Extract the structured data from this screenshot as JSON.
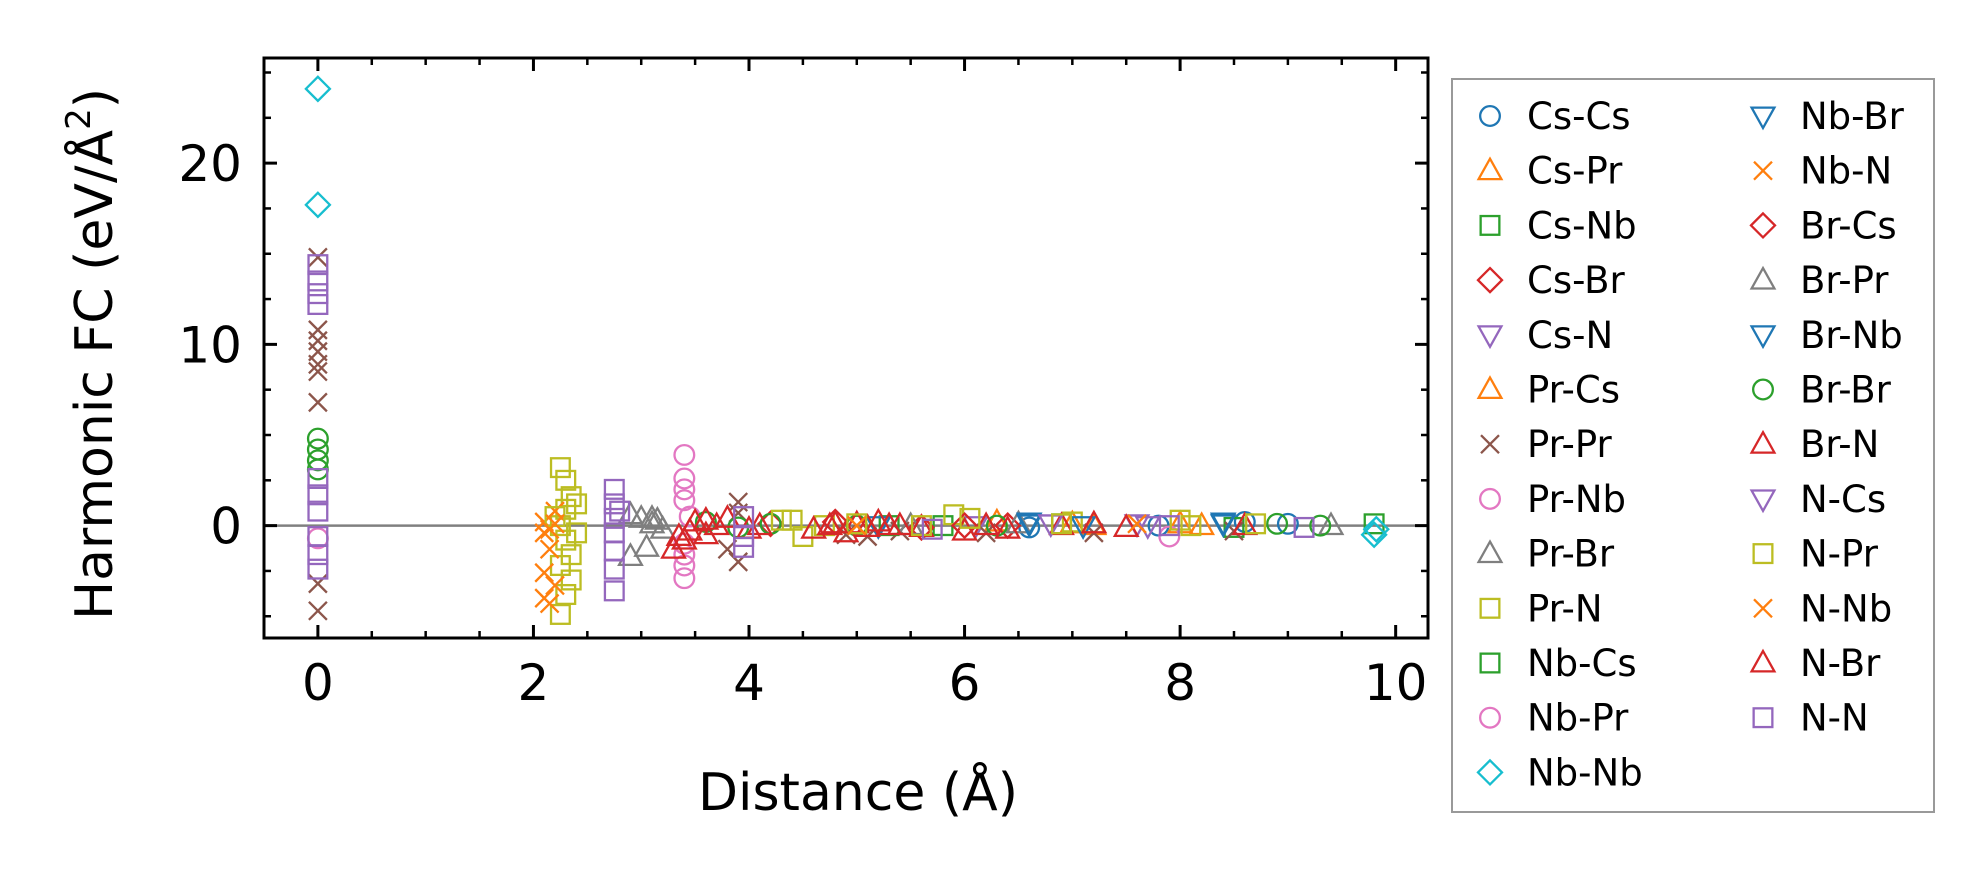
{
  "chart_data": {
    "type": "scatter",
    "title": "",
    "xlabel": "Distance (Å)",
    "ylabel_main": "Harmonic FC (eV/Å",
    "ylabel_sup": "2",
    "ylabel_close": ")",
    "xlim": [
      -0.5,
      10.3
    ],
    "ylim": [
      -6.2,
      25.8
    ],
    "x_ticks": [
      0,
      2,
      4,
      6,
      8,
      10
    ],
    "x_tick_labels": [
      "0",
      "2",
      "4",
      "6",
      "8",
      "10"
    ],
    "y_ticks": [
      0,
      10,
      20
    ],
    "y_tick_labels": [
      "0",
      "10",
      "20"
    ],
    "x_minor_step": 0.5,
    "y_minor_step": 2.5,
    "reference_line_y": 0,
    "legend": {
      "position": "outside-right",
      "columns": 2
    },
    "series": [
      {
        "name": "Cs-Cs",
        "marker": "circle",
        "color": "#1f77b4",
        "points": [
          [
            8.6,
            0.2
          ],
          [
            9.0,
            0.1
          ],
          [
            7.8,
            0.0
          ],
          [
            6.6,
            -0.1
          ]
        ]
      },
      {
        "name": "Cs-Pr",
        "marker": "triangle-up",
        "color": "#ff7f0e",
        "points": [
          [
            7.0,
            0.1
          ],
          [
            8.2,
            0.0
          ],
          [
            6.3,
            0.2
          ]
        ]
      },
      {
        "name": "Cs-Nb",
        "marker": "square",
        "color": "#2ca02c",
        "points": [
          [
            5.8,
            0.0
          ],
          [
            6.9,
            0.1
          ],
          [
            8.5,
            -0.1
          ]
        ]
      },
      {
        "name": "Cs-Br",
        "marker": "diamond",
        "color": "#d62728",
        "points": [
          [
            4.2,
            0.1
          ],
          [
            5.6,
            -0.1
          ],
          [
            6.4,
            0.0
          ]
        ]
      },
      {
        "name": "Cs-N",
        "marker": "triangle-down",
        "color": "#9467bd",
        "points": [
          [
            7.6,
            0.1
          ],
          [
            6.1,
            0.0
          ]
        ]
      },
      {
        "name": "Pr-Cs",
        "marker": "triangle-up",
        "color": "#ff7f0e",
        "points": [
          [
            7.2,
            0.0
          ],
          [
            8.0,
            0.1
          ]
        ]
      },
      {
        "name": "Pr-Pr",
        "marker": "x",
        "color": "#8c564b",
        "points": [
          [
            0,
            14.8
          ],
          [
            0,
            10.8
          ],
          [
            0,
            10.2
          ],
          [
            0,
            9.6
          ],
          [
            0,
            8.9
          ],
          [
            0,
            8.5
          ],
          [
            0,
            6.8
          ],
          [
            0,
            -3.2
          ],
          [
            0,
            -4.7
          ],
          [
            3.9,
            1.3
          ],
          [
            3.9,
            0.7
          ],
          [
            3.9,
            -2.0
          ],
          [
            3.8,
            -1.3
          ],
          [
            4.9,
            -0.5
          ],
          [
            5.1,
            -0.6
          ],
          [
            5.4,
            -0.3
          ],
          [
            6.2,
            -0.4
          ],
          [
            7.2,
            -0.4
          ],
          [
            8.5,
            -0.3
          ]
        ]
      },
      {
        "name": "Pr-Nb",
        "marker": "circle",
        "color": "#e377c2",
        "points": [
          [
            3.4,
            3.9
          ],
          [
            3.4,
            2.6
          ],
          [
            3.4,
            2.0
          ],
          [
            3.4,
            1.4
          ],
          [
            3.4,
            -1.0
          ],
          [
            3.4,
            -1.6
          ],
          [
            3.4,
            -2.2
          ],
          [
            3.4,
            -2.9
          ],
          [
            7.9,
            -0.6
          ]
        ]
      },
      {
        "name": "Pr-Br",
        "marker": "triangle-up",
        "color": "#7f7f7f",
        "points": [
          [
            2.9,
            0.6
          ],
          [
            3.0,
            0.4
          ],
          [
            3.1,
            0.1
          ],
          [
            3.2,
            -0.2
          ],
          [
            2.9,
            -1.7
          ],
          [
            3.05,
            -1.2
          ],
          [
            3.15,
            0.3
          ],
          [
            9.4,
            0.0
          ],
          [
            6.5,
            0.1
          ]
        ]
      },
      {
        "name": "Pr-N",
        "marker": "square",
        "color": "#bcbd22",
        "points": [
          [
            2.25,
            3.2
          ],
          [
            2.3,
            2.5
          ],
          [
            2.35,
            1.6
          ],
          [
            2.3,
            0.9
          ],
          [
            2.25,
            0.0
          ],
          [
            2.3,
            -0.8
          ],
          [
            2.35,
            -1.6
          ],
          [
            2.25,
            -2.2
          ],
          [
            2.35,
            -3.0
          ],
          [
            2.3,
            -3.8
          ],
          [
            2.25,
            -4.9
          ],
          [
            2.4,
            1.2
          ],
          [
            2.4,
            -0.4
          ],
          [
            4.4,
            0.3
          ],
          [
            4.5,
            -0.6
          ],
          [
            4.7,
            0.0
          ],
          [
            5.9,
            0.6
          ],
          [
            7.0,
            0.2
          ],
          [
            8.0,
            0.3
          ]
        ]
      },
      {
        "name": "Nb-Cs",
        "marker": "square",
        "color": "#2ca02c",
        "points": [
          [
            9.8,
            0.1
          ],
          [
            5.3,
            0.0
          ]
        ]
      },
      {
        "name": "Nb-Pr",
        "marker": "circle",
        "color": "#e377c2",
        "points": [
          [
            0,
            -0.7
          ],
          [
            3.45,
            0.5
          ]
        ]
      },
      {
        "name": "Nb-Nb",
        "marker": "diamond",
        "color": "#17becf",
        "points": [
          [
            0,
            24.1
          ],
          [
            0,
            17.7
          ],
          [
            9.8,
            -0.5
          ],
          [
            9.82,
            -0.2
          ]
        ]
      },
      {
        "name": "Nb-Br",
        "marker": "triangle-down",
        "color": "#1f77b4",
        "points": [
          [
            6.6,
            0.1
          ],
          [
            8.4,
            0.2
          ],
          [
            5.2,
            0.0
          ]
        ]
      },
      {
        "name": "Nb-N",
        "marker": "x",
        "color": "#ff7f0e",
        "points": [
          [
            2.1,
            0.2
          ],
          [
            2.1,
            -0.4
          ],
          [
            2.15,
            -1.3
          ],
          [
            2.1,
            -2.6
          ],
          [
            2.2,
            -3.3
          ],
          [
            2.1,
            -4.0
          ],
          [
            2.15,
            -4.3
          ],
          [
            2.2,
            0.8
          ]
        ]
      },
      {
        "name": "Br-Cs",
        "marker": "diamond",
        "color": "#d62728",
        "points": [
          [
            4.8,
            0.2
          ],
          [
            6.0,
            0.0
          ]
        ]
      },
      {
        "name": "Br-Pr",
        "marker": "triangle-up",
        "color": "#7f7f7f",
        "points": [
          [
            3.1,
            0.4
          ],
          [
            5.5,
            0.0
          ]
        ]
      },
      {
        "name": "Br-Nb",
        "marker": "triangle-down",
        "color": "#1f77b4",
        "points": [
          [
            6.6,
            0.2
          ],
          [
            8.4,
            0.1
          ],
          [
            7.1,
            0.0
          ]
        ]
      },
      {
        "name": "Br-Br",
        "marker": "circle",
        "color": "#2ca02c",
        "points": [
          [
            0,
            4.8
          ],
          [
            0,
            4.2
          ],
          [
            0,
            3.6
          ],
          [
            0,
            3.1
          ],
          [
            3.6,
            0.2
          ],
          [
            3.9,
            -0.1
          ],
          [
            4.2,
            0.1
          ],
          [
            5.0,
            0.0
          ],
          [
            6.3,
            0.0
          ],
          [
            8.9,
            0.1
          ],
          [
            9.3,
            0.0
          ]
        ]
      },
      {
        "name": "Br-N",
        "marker": "triangle-up",
        "color": "#d62728",
        "points": [
          [
            3.3,
            -1.3
          ],
          [
            3.4,
            -0.8
          ],
          [
            3.45,
            -0.3
          ],
          [
            3.5,
            0.2
          ],
          [
            3.6,
            -0.5
          ],
          [
            3.7,
            0.0
          ],
          [
            3.8,
            0.4
          ],
          [
            4.0,
            -0.2
          ],
          [
            4.6,
            -0.2
          ],
          [
            4.75,
            0.0
          ],
          [
            4.9,
            -0.4
          ],
          [
            5.0,
            0.1
          ],
          [
            5.1,
            -0.1
          ],
          [
            5.2,
            0.2
          ],
          [
            5.4,
            0.0
          ],
          [
            5.6,
            -0.1
          ],
          [
            6.0,
            -0.3
          ],
          [
            6.2,
            0.0
          ],
          [
            6.4,
            -0.2
          ],
          [
            6.9,
            0.0
          ],
          [
            7.2,
            0.1
          ],
          [
            7.5,
            -0.1
          ],
          [
            8.6,
            0.0
          ]
        ]
      },
      {
        "name": "N-Cs",
        "marker": "triangle-down",
        "color": "#9467bd",
        "points": [
          [
            7.7,
            0.0
          ],
          [
            6.8,
            0.1
          ]
        ]
      },
      {
        "name": "N-Pr",
        "marker": "square",
        "color": "#bcbd22",
        "points": [
          [
            2.2,
            0.5
          ],
          [
            4.3,
            0.3
          ],
          [
            5.0,
            0.1
          ],
          [
            5.6,
            0.0
          ],
          [
            6.05,
            0.4
          ],
          [
            6.9,
            0.1
          ],
          [
            8.1,
            0.0
          ],
          [
            8.7,
            0.1
          ]
        ]
      },
      {
        "name": "N-Nb",
        "marker": "x",
        "color": "#ff7f0e",
        "points": [
          [
            2.2,
            0.1
          ],
          [
            2.15,
            -0.2
          ],
          [
            5.0,
            0.0
          ],
          [
            7.6,
            0.1
          ]
        ]
      },
      {
        "name": "N-Br",
        "marker": "triangle-up",
        "color": "#d62728",
        "points": [
          [
            3.35,
            -0.6
          ],
          [
            3.6,
            0.3
          ],
          [
            4.1,
            0.0
          ],
          [
            4.8,
            0.1
          ],
          [
            5.3,
            0.0
          ]
        ]
      },
      {
        "name": "N-N",
        "marker": "square",
        "color": "#9467bd",
        "points": [
          [
            0,
            14.4
          ],
          [
            0,
            13.5
          ],
          [
            0,
            12.8
          ],
          [
            0,
            12.2
          ],
          [
            0,
            2.6
          ],
          [
            0,
            1.7
          ],
          [
            0,
            0.8
          ],
          [
            0,
            -0.6
          ],
          [
            0,
            -1.6
          ],
          [
            0,
            -2.4
          ],
          [
            2.75,
            2.0
          ],
          [
            2.75,
            1.2
          ],
          [
            2.75,
            0.4
          ],
          [
            2.75,
            -0.4
          ],
          [
            2.75,
            -1.4
          ],
          [
            2.75,
            -2.4
          ],
          [
            2.75,
            -3.6
          ],
          [
            2.8,
            0.8
          ],
          [
            3.95,
            0.5
          ],
          [
            3.95,
            -0.6
          ],
          [
            3.95,
            -1.2
          ],
          [
            5.7,
            -0.2
          ],
          [
            7.9,
            0.0
          ],
          [
            9.15,
            -0.1
          ]
        ]
      }
    ]
  }
}
